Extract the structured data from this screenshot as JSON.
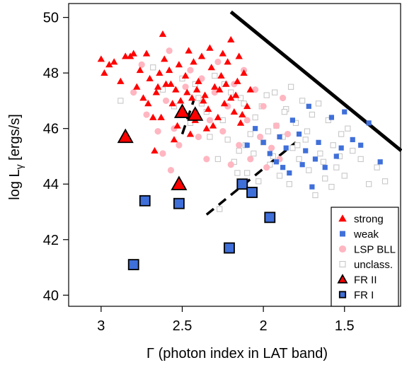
{
  "chart_data": {
    "type": "scatter",
    "title": "",
    "xlabel": "Γ (photon index in LAT band)",
    "ylabel_main": "log L",
    "ylabel_sub": "γ",
    "ylabel_tail": " [ergs/s]",
    "xlim": [
      3.2,
      1.15
    ],
    "ylim": [
      39.6,
      50.5
    ],
    "x_reversed": true,
    "x_ticks": [
      3,
      2.5,
      2,
      1.5
    ],
    "x_tick_labels": [
      "3",
      "2.5",
      "2",
      "1.5"
    ],
    "y_ticks": [
      40,
      42,
      44,
      46,
      48,
      50
    ],
    "y_tick_labels": [
      "40",
      "42",
      "44",
      "46",
      "48",
      "50"
    ],
    "grid": false,
    "legend_position": "bottom-right",
    "series": [
      {
        "name": "unclass.",
        "marker": "open-square",
        "color": "#c8c8c8",
        "points": [
          [
            2.88,
            47.0
          ],
          [
            2.68,
            48.2
          ],
          [
            2.62,
            47.4
          ],
          [
            2.55,
            46.8
          ],
          [
            2.5,
            47.8
          ],
          [
            2.45,
            46.2
          ],
          [
            2.4,
            47.1
          ],
          [
            2.35,
            46.6
          ],
          [
            2.3,
            47.9
          ],
          [
            2.25,
            46.3
          ],
          [
            2.22,
            45.6
          ],
          [
            2.2,
            47.3
          ],
          [
            2.18,
            44.8
          ],
          [
            2.15,
            45.2
          ],
          [
            2.12,
            46.9
          ],
          [
            2.1,
            44.4
          ],
          [
            2.08,
            45.8
          ],
          [
            2.05,
            46.4
          ],
          [
            2.03,
            44.1
          ],
          [
            2.0,
            45.5
          ],
          [
            1.98,
            47.2
          ],
          [
            1.96,
            44.7
          ],
          [
            1.94,
            45.0
          ],
          [
            1.92,
            46.1
          ],
          [
            1.9,
            44.3
          ],
          [
            1.88,
            45.7
          ],
          [
            1.86,
            46.7
          ],
          [
            1.84,
            44.0
          ],
          [
            1.82,
            45.3
          ],
          [
            1.8,
            46.2
          ],
          [
            1.78,
            44.9
          ],
          [
            1.76,
            47.0
          ],
          [
            1.74,
            45.6
          ],
          [
            1.72,
            44.5
          ],
          [
            1.7,
            46.5
          ],
          [
            1.68,
            43.6
          ],
          [
            1.65,
            45.1
          ],
          [
            1.62,
            44.2
          ],
          [
            1.6,
            46.3
          ],
          [
            1.57,
            45.4
          ],
          [
            1.55,
            44.6
          ],
          [
            1.52,
            45.8
          ],
          [
            1.5,
            44.3
          ],
          [
            1.48,
            46.0
          ],
          [
            1.45,
            45.2
          ],
          [
            1.4,
            44.9
          ],
          [
            1.35,
            44.0
          ],
          [
            1.3,
            44.6
          ],
          [
            1.25,
            44.1
          ],
          [
            2.28,
            44.9
          ],
          [
            2.33,
            45.7
          ],
          [
            2.38,
            46.9
          ],
          [
            2.42,
            47.6
          ],
          [
            2.27,
            43.1
          ],
          [
            2.16,
            44.4
          ],
          [
            2.06,
            45.1
          ],
          [
            1.97,
            45.9
          ],
          [
            1.87,
            46.6
          ],
          [
            1.83,
            47.5
          ],
          [
            1.79,
            45.4
          ],
          [
            2.24,
            47.6
          ],
          [
            2.14,
            47.1
          ],
          [
            2.11,
            45.4
          ],
          [
            2.01,
            46.8
          ],
          [
            1.93,
            47.3
          ],
          [
            1.73,
            45.9
          ],
          [
            1.66,
            46.9
          ],
          [
            1.58,
            43.9
          ],
          [
            1.63,
            44.8
          ],
          [
            1.53,
            45.0
          ]
        ]
      },
      {
        "name": "LSP BLL",
        "marker": "filled-circle",
        "color": "#ffb6c1",
        "points": [
          [
            2.8,
            47.3
          ],
          [
            2.75,
            48.3
          ],
          [
            2.72,
            46.5
          ],
          [
            2.65,
            45.9
          ],
          [
            2.6,
            47.0
          ],
          [
            2.58,
            48.8
          ],
          [
            2.55,
            46.0
          ],
          [
            2.52,
            45.4
          ],
          [
            2.48,
            47.5
          ],
          [
            2.45,
            48.1
          ],
          [
            2.42,
            46.6
          ],
          [
            2.4,
            45.7
          ],
          [
            2.38,
            47.8
          ],
          [
            2.35,
            44.9
          ],
          [
            2.33,
            46.3
          ],
          [
            2.3,
            47.3
          ],
          [
            2.28,
            48.4
          ],
          [
            2.25,
            45.9
          ],
          [
            2.22,
            46.8
          ],
          [
            2.2,
            44.7
          ],
          [
            2.18,
            47.6
          ],
          [
            2.15,
            45.4
          ],
          [
            2.12,
            48.1
          ],
          [
            2.1,
            46.3
          ],
          [
            2.08,
            44.9
          ],
          [
            2.05,
            47.4
          ],
          [
            2.02,
            45.7
          ],
          [
            2.0,
            46.8
          ],
          [
            1.98,
            44.6
          ],
          [
            1.95,
            45.3
          ],
          [
            1.92,
            46.1
          ],
          [
            1.9,
            44.9
          ],
          [
            1.88,
            47.1
          ],
          [
            1.85,
            45.8
          ],
          [
            2.62,
            45.1
          ],
          [
            2.57,
            44.5
          ]
        ]
      },
      {
        "name": "weak",
        "marker": "filled-square",
        "color": "#3f6fd9",
        "points": [
          [
            2.05,
            46.0
          ],
          [
            2.0,
            45.5
          ],
          [
            1.96,
            45.1
          ],
          [
            1.92,
            44.8
          ],
          [
            1.9,
            45.7
          ],
          [
            1.86,
            45.3
          ],
          [
            1.84,
            44.4
          ],
          [
            1.82,
            46.3
          ],
          [
            1.78,
            45.8
          ],
          [
            1.76,
            44.7
          ],
          [
            1.74,
            45.2
          ],
          [
            1.72,
            46.8
          ],
          [
            1.7,
            43.9
          ],
          [
            1.66,
            45.5
          ],
          [
            1.62,
            44.6
          ],
          [
            1.58,
            46.4
          ],
          [
            1.55,
            45.0
          ],
          [
            1.52,
            45.3
          ],
          [
            1.5,
            46.6
          ],
          [
            1.45,
            45.6
          ],
          [
            1.4,
            45.4
          ],
          [
            1.35,
            46.2
          ],
          [
            1.28,
            44.8
          ],
          [
            2.1,
            45.4
          ],
          [
            1.88,
            44.6
          ],
          [
            1.68,
            44.9
          ]
        ]
      },
      {
        "name": "strong",
        "marker": "filled-triangle",
        "color": "#ff0000",
        "points": [
          [
            3.0,
            48.5
          ],
          [
            2.98,
            48.0
          ],
          [
            2.95,
            48.3
          ],
          [
            2.92,
            48.4
          ],
          [
            2.88,
            47.7
          ],
          [
            2.85,
            48.6
          ],
          [
            2.82,
            48.6
          ],
          [
            2.8,
            48.7
          ],
          [
            2.78,
            47.5
          ],
          [
            2.76,
            48.1
          ],
          [
            2.74,
            47.1
          ],
          [
            2.72,
            48.7
          ],
          [
            2.7,
            47.8
          ],
          [
            2.68,
            46.4
          ],
          [
            2.66,
            47.3
          ],
          [
            2.64,
            48.0
          ],
          [
            2.62,
            49.4
          ],
          [
            2.6,
            47.6
          ],
          [
            2.58,
            48.1
          ],
          [
            2.56,
            46.9
          ],
          [
            2.54,
            47.4
          ],
          [
            2.52,
            48.3
          ],
          [
            2.5,
            46.6
          ],
          [
            2.48,
            47.9
          ],
          [
            2.46,
            48.8
          ],
          [
            2.44,
            47.1
          ],
          [
            2.42,
            46.3
          ],
          [
            2.4,
            47.7
          ],
          [
            2.38,
            48.6
          ],
          [
            2.36,
            47.2
          ],
          [
            2.34,
            46.7
          ],
          [
            2.32,
            48.2
          ],
          [
            2.3,
            47.5
          ],
          [
            2.28,
            46.4
          ],
          [
            2.26,
            47.9
          ],
          [
            2.24,
            46.9
          ],
          [
            2.22,
            48.4
          ],
          [
            2.2,
            47.1
          ],
          [
            2.18,
            46.6
          ],
          [
            2.16,
            47.7
          ],
          [
            2.14,
            46.2
          ],
          [
            2.12,
            48.0
          ],
          [
            2.1,
            46.8
          ],
          [
            2.2,
            49.2
          ],
          [
            2.31,
            46.1
          ],
          [
            2.45,
            45.8
          ],
          [
            2.55,
            45.6
          ],
          [
            2.67,
            45.2
          ],
          [
            2.57,
            47.6
          ],
          [
            2.47,
            47.3
          ],
          [
            2.37,
            47.0
          ],
          [
            2.27,
            47.4
          ],
          [
            2.17,
            47.2
          ],
          [
            2.71,
            46.9
          ],
          [
            2.63,
            46.4
          ],
          [
            2.53,
            46.1
          ],
          [
            2.43,
            48.4
          ],
          [
            2.33,
            48.9
          ],
          [
            2.23,
            47.6
          ],
          [
            2.13,
            46.5
          ],
          [
            2.51,
            47.0
          ],
          [
            2.41,
            47.4
          ],
          [
            2.61,
            48.5
          ],
          [
            2.65,
            47.5
          ],
          [
            2.35,
            46.0
          ],
          [
            2.25,
            48.7
          ],
          [
            2.15,
            48.6
          ],
          [
            2.08,
            47.4
          ]
        ]
      },
      {
        "name": "FR II",
        "marker": "outlined-triangle",
        "color": "#ff0000",
        "points": [
          [
            2.85,
            45.7
          ],
          [
            2.52,
            44.0
          ],
          [
            2.5,
            46.6
          ],
          [
            2.42,
            46.5
          ]
        ]
      },
      {
        "name": "FR I",
        "marker": "outlined-square",
        "color": "#3f6fd9",
        "points": [
          [
            2.73,
            43.4
          ],
          [
            2.52,
            43.3
          ],
          [
            2.13,
            44.0
          ],
          [
            2.07,
            43.7
          ],
          [
            1.96,
            42.8
          ],
          [
            2.21,
            41.7
          ],
          [
            2.8,
            41.1
          ]
        ]
      }
    ],
    "lines": [
      {
        "style": "solid",
        "color": "#000000",
        "x": [
          2.2,
          1.15
        ],
        "y": [
          50.2,
          45.2
        ]
      },
      {
        "style": "dashed",
        "color": "#000000",
        "x": [
          2.5,
          2.43
        ],
        "y": [
          45.8,
          47.0
        ]
      },
      {
        "style": "dashed",
        "color": "#000000",
        "x": [
          2.35,
          1.8
        ],
        "y": [
          42.9,
          45.5
        ]
      }
    ]
  }
}
